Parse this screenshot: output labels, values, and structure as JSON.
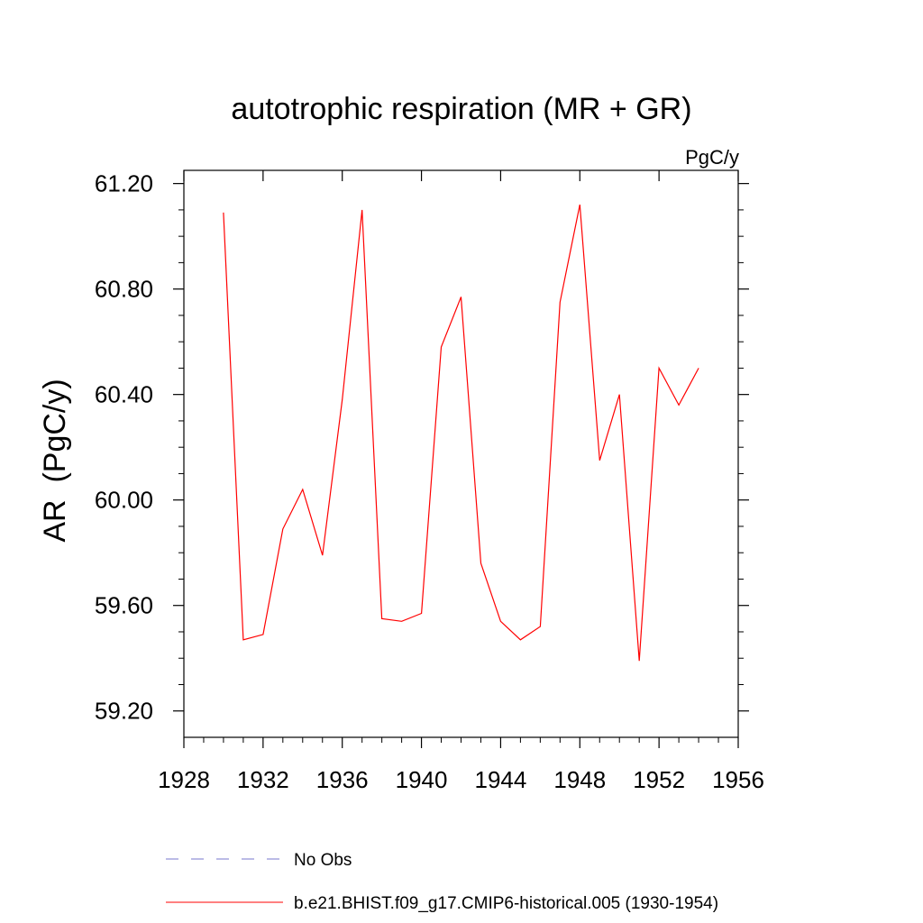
{
  "chart_data": {
    "type": "line",
    "title": "autotrophic respiration (MR + GR)",
    "units": "PgC/y",
    "xlabel": "",
    "ylabel": "AR  (PgC/y)",
    "xlim": [
      1928,
      1956
    ],
    "ylim": [
      59.1,
      61.25
    ],
    "xticks": [
      1928,
      1932,
      1936,
      1940,
      1944,
      1948,
      1952,
      1956
    ],
    "xtick_labels": [
      "1928",
      "1932",
      "1936",
      "1940",
      "1944",
      "1948",
      "1952",
      "1956"
    ],
    "yticks": [
      59.2,
      59.6,
      60.0,
      60.4,
      60.8,
      61.2
    ],
    "ytick_labels": [
      "59.20",
      "59.60",
      "60.00",
      "60.40",
      "60.80",
      "61.20"
    ],
    "grid": false,
    "legend_position": "bottom",
    "series": [
      {
        "name": "b.e21.BHIST.f09_g17.CMIP6-historical.005 (1930-1954)",
        "color": "#ff0000",
        "style": "solid",
        "x": [
          1930,
          1931,
          1932,
          1933,
          1934,
          1935,
          1936,
          1937,
          1938,
          1939,
          1940,
          1941,
          1942,
          1943,
          1944,
          1945,
          1946,
          1947,
          1948,
          1949,
          1950,
          1951,
          1952,
          1953,
          1954
        ],
        "y": [
          61.09,
          59.47,
          59.49,
          59.89,
          60.04,
          59.79,
          60.38,
          61.1,
          59.55,
          59.54,
          59.57,
          60.58,
          60.77,
          59.76,
          59.54,
          59.47,
          59.52,
          60.75,
          61.12,
          60.15,
          60.4,
          59.39,
          60.5,
          60.36,
          60.5
        ]
      },
      {
        "name": "No Obs",
        "color": "#7777cc",
        "style": "dashed",
        "x": [],
        "y": []
      }
    ]
  }
}
